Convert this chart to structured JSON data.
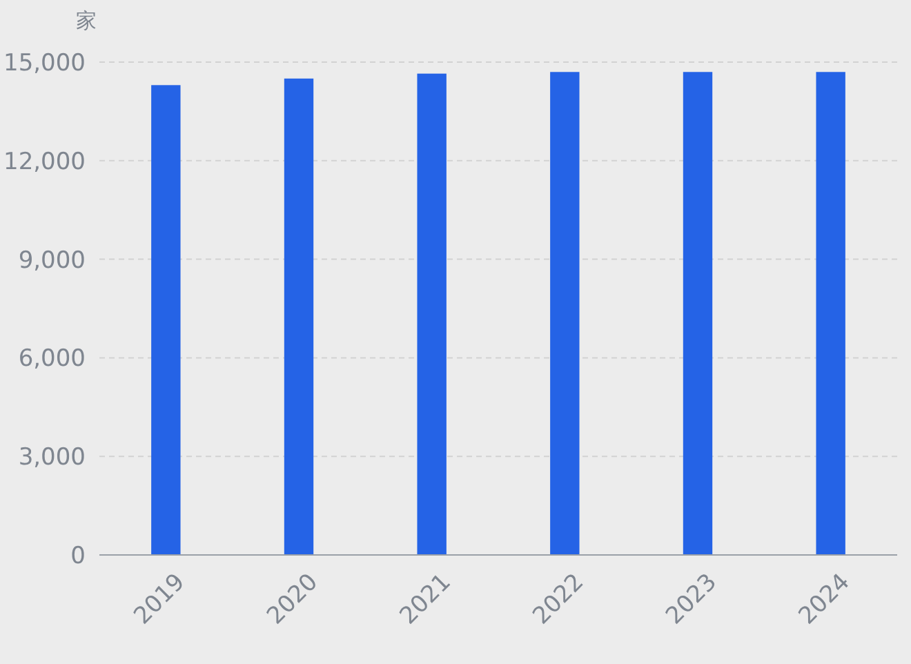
{
  "chart_data": {
    "type": "bar",
    "ylabel": "家",
    "categories": [
      "2019",
      "2020",
      "2021",
      "2022",
      "2023",
      "2024"
    ],
    "values": [
      14300,
      14500,
      14650,
      14700,
      14700,
      14700
    ],
    "color": "#2563e6",
    "ylim": [
      0,
      15000
    ],
    "yticks": [
      0,
      {
        "value": 3000,
        "label": "3,000"
      },
      {
        "value": 6000,
        "label": "6,000"
      },
      {
        "value": 9000,
        "label": "9,000"
      },
      {
        "value": 12000,
        "label": "12,000"
      },
      {
        "value": 15000,
        "label": "15,000"
      }
    ],
    "grid": "y"
  }
}
